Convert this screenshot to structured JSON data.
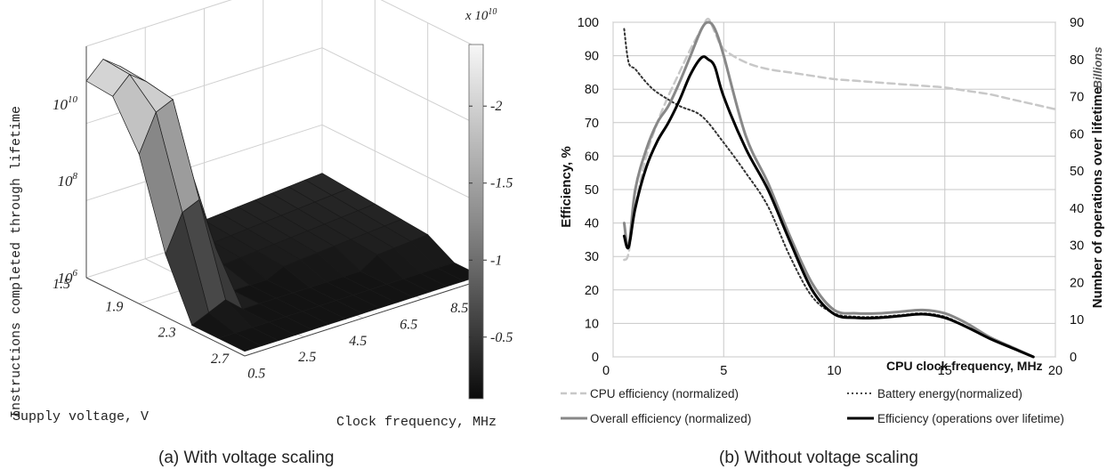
{
  "panel_a": {
    "caption": "(a) With voltage scaling",
    "colorbar_exponent": "x 10",
    "colorbar_exponent_power": "10",
    "colorbar_ticks": [
      "2",
      "1.5",
      "1",
      "0.5"
    ],
    "colors": {
      "high": "#f2f2f2",
      "mid": "#777777",
      "low": "#111111"
    }
  },
  "panel_b": {
    "caption": "(b) Without voltage scaling",
    "legend_colors": {
      "cpu": "#c8c8c8",
      "battery": "#444444",
      "overall": "#888888",
      "ops": "#000000"
    }
  },
  "chart_data": [
    {
      "type": "surface",
      "zlabel": "Instructions completed through lifetime",
      "ylabel": "Supply voltage, V",
      "xlabel": "Clock frequency, MHz",
      "z_scale": "log",
      "z_ticks": [
        {
          "base": "10",
          "exp": "10"
        },
        {
          "base": "10",
          "exp": "8"
        },
        {
          "base": "10",
          "exp": "6"
        }
      ],
      "y_ticks": [
        "1.5",
        "1.9",
        "2.3",
        "2.7"
      ],
      "x_ticks": [
        "0.5",
        "2.5",
        "4.5",
        "6.5",
        "8.5"
      ],
      "colorbar": {
        "ticks": [
          2,
          1.5,
          1,
          0.5
        ],
        "exponent": "x 10^10"
      }
    },
    {
      "type": "line",
      "xlabel": "CPU clock frequency, MHz",
      "ylabel": "Efficiency, %",
      "y2label": "Number of operations over lifetime",
      "y2unit": "Billions",
      "xlim": [
        0,
        20
      ],
      "ylim": [
        0,
        100
      ],
      "y2lim": [
        0,
        90
      ],
      "x_ticks": [
        0,
        5,
        10,
        15,
        20
      ],
      "y_ticks": [
        0,
        10,
        20,
        30,
        40,
        50,
        60,
        70,
        80,
        90,
        100
      ],
      "y2_ticks": [
        0,
        10,
        20,
        30,
        40,
        50,
        60,
        70,
        80,
        90
      ],
      "grid": true,
      "legend_position": "bottom",
      "series": [
        {
          "name": "CPU efficiency (normalized)",
          "style": "dashed",
          "x": [
            0.5,
            0.7,
            1.0,
            1.5,
            2.0,
            2.5,
            3.0,
            3.5,
            4.0,
            4.3,
            4.6,
            5.0,
            6.0,
            7.0,
            8.0,
            9.0,
            10.0,
            11.0,
            12.0,
            13.0,
            14.0,
            15.0,
            16.0,
            17.0,
            18.0,
            19.0,
            20.0
          ],
          "y": [
            29,
            31,
            45,
            60,
            70,
            78,
            85,
            92,
            98,
            101,
            97,
            92,
            88,
            86,
            85,
            84,
            83,
            82.5,
            82,
            81.5,
            81,
            80.5,
            79.5,
            78.5,
            77,
            75.5,
            74
          ]
        },
        {
          "name": "Battery energy(normalized)",
          "style": "dotted",
          "x": [
            0.5,
            0.7,
            1.0,
            1.5,
            2.0,
            3.0,
            4.0,
            5.0,
            6.0,
            7.0,
            8.0,
            9.0,
            10.0,
            11.0,
            12.0,
            13.0,
            14.0,
            15.0,
            16.0,
            17.0,
            18.0,
            19.0
          ],
          "y": [
            98,
            88,
            86,
            82,
            79,
            75,
            72,
            64,
            55,
            45,
            30,
            18,
            13,
            12,
            12,
            12.5,
            13,
            12,
            9,
            6,
            3,
            0
          ]
        },
        {
          "name": "Overall efficiency (normalized)",
          "style": "solid",
          "x": [
            0.5,
            0.7,
            1.0,
            1.5,
            2.0,
            2.5,
            3.0,
            3.5,
            4.0,
            4.3,
            4.6,
            5.0,
            6.0,
            7.0,
            8.0,
            9.0,
            10.0,
            11.0,
            12.0,
            13.0,
            14.0,
            15.0,
            16.0,
            17.0,
            18.0,
            19.0
          ],
          "y": [
            40,
            33,
            50,
            62,
            70,
            75,
            82,
            90,
            98,
            100,
            98,
            90,
            66,
            52,
            36,
            22,
            14,
            13,
            13,
            13.5,
            14,
            13,
            10,
            6,
            3,
            0
          ]
        },
        {
          "name": "Efficiency (operations over lifetime)",
          "style": "solid",
          "axis": "y2",
          "x": [
            0.5,
            0.7,
            1.0,
            1.5,
            2.0,
            2.5,
            3.0,
            3.5,
            4.0,
            4.3,
            4.6,
            5.0,
            6.0,
            7.0,
            8.0,
            9.0,
            10.0,
            11.0,
            12.0,
            13.0,
            14.0,
            15.0,
            16.0,
            17.0,
            18.0,
            19.0
          ],
          "y": [
            32.5,
            29.5,
            40,
            51,
            58,
            63,
            69,
            76,
            80.5,
            80,
            78,
            70,
            56,
            45,
            31,
            18,
            11.5,
            10.5,
            10.5,
            11,
            11.5,
            10.5,
            8,
            5,
            2.5,
            0
          ]
        }
      ]
    }
  ]
}
